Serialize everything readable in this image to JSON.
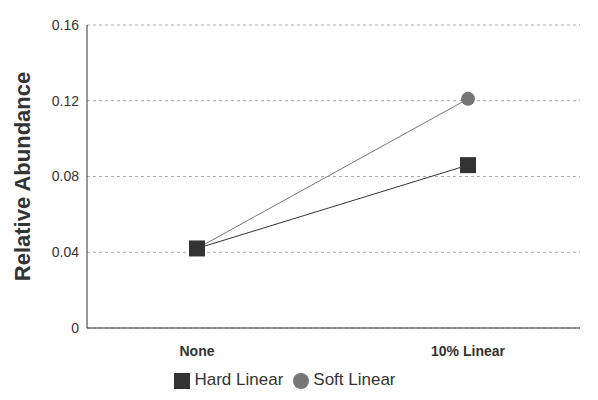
{
  "chart_data": {
    "type": "line",
    "y_label": "Relative Abundance",
    "categories": [
      "None",
      "10% Linear"
    ],
    "series": [
      {
        "name": "Soft Linear",
        "color": "#757575",
        "marker": "circle",
        "values": [
          0.042,
          0.121
        ]
      },
      {
        "name": "Hard Linear",
        "color": "#333333",
        "marker": "square",
        "values": [
          0.042,
          0.086
        ]
      }
    ],
    "ylim": [
      0,
      0.16
    ],
    "yticks": [
      0,
      0.04,
      0.08,
      0.12,
      0.16
    ],
    "grid": true,
    "legend": "bottom"
  }
}
